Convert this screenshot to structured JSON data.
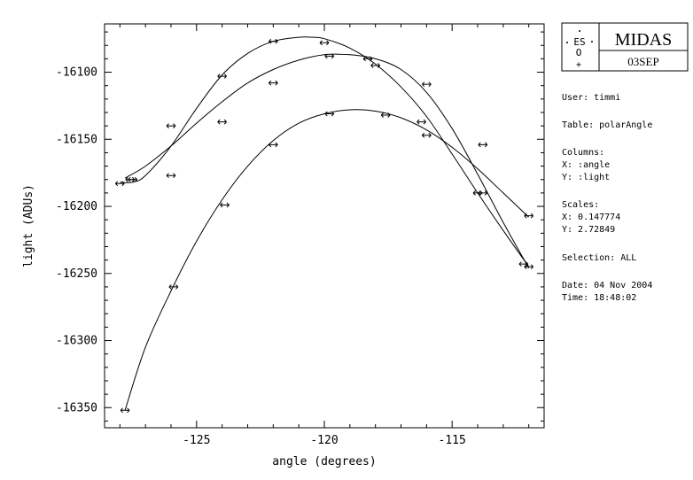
{
  "chart_data": {
    "type": "scatter",
    "xlabel": "angle (degrees)",
    "ylabel": "light (ADUs)",
    "xlim": [
      -128.6,
      -111.4
    ],
    "ylim": [
      -16365,
      -16064
    ],
    "xticks": [
      -125,
      -120,
      -115
    ],
    "yticks": [
      -16100,
      -16150,
      -16200,
      -16250,
      -16300,
      -16350
    ],
    "tick_labels_x": [
      "-125",
      "-120",
      "-115"
    ],
    "tick_labels_y": [
      "-16100",
      "-16150",
      "-16200",
      "-16250",
      "-16300",
      "-16350"
    ],
    "grid": false,
    "marker": "double-arrow",
    "series": [
      {
        "points": [
          {
            "x": -128.0,
            "y": -16183
          },
          {
            "x": -127.5,
            "y": -16180
          },
          {
            "x": -126.0,
            "y": -16140
          },
          {
            "x": -124.0,
            "y": -16103
          },
          {
            "x": -122.0,
            "y": -16077
          },
          {
            "x": -120.0,
            "y": -16078
          },
          {
            "x": -118.0,
            "y": -16095
          },
          {
            "x": -116.0,
            "y": -16147
          },
          {
            "x": -113.8,
            "y": -16190
          },
          {
            "x": -112.0,
            "y": -16245
          }
        ],
        "curve": [
          [
            -128.0,
            -16182
          ],
          [
            -127.5,
            -16182
          ],
          [
            -127.0,
            -16177
          ],
          [
            -126.0,
            -16155
          ],
          [
            -125.0,
            -16127
          ],
          [
            -124.0,
            -16102
          ],
          [
            -123.0,
            -16086
          ],
          [
            -122.0,
            -16077
          ],
          [
            -121.0,
            -16074
          ],
          [
            -120.5,
            -16074
          ],
          [
            -120.0,
            -16075
          ],
          [
            -119.0,
            -16082
          ],
          [
            -118.0,
            -16094
          ],
          [
            -117.0,
            -16111
          ],
          [
            -116.0,
            -16133
          ],
          [
            -115.0,
            -16161
          ],
          [
            -114.0,
            -16190
          ],
          [
            -113.0,
            -16218
          ],
          [
            -112.0,
            -16245
          ]
        ]
      },
      {
        "points": [
          {
            "x": -127.6,
            "y": -16180
          },
          {
            "x": -126.0,
            "y": -16177
          },
          {
            "x": -124.0,
            "y": -16137
          },
          {
            "x": -122.0,
            "y": -16108
          },
          {
            "x": -119.8,
            "y": -16088
          },
          {
            "x": -118.3,
            "y": -16090
          },
          {
            "x": -116.2,
            "y": -16137
          },
          {
            "x": -116.0,
            "y": -16109
          },
          {
            "x": -114.0,
            "y": -16190
          },
          {
            "x": -112.2,
            "y": -16243
          }
        ],
        "curve": [
          [
            -127.8,
            -16179
          ],
          [
            -127.0,
            -16170
          ],
          [
            -126.0,
            -16155
          ],
          [
            -125.0,
            -16138
          ],
          [
            -124.0,
            -16122
          ],
          [
            -123.0,
            -16108
          ],
          [
            -122.0,
            -16098
          ],
          [
            -121.0,
            -16091
          ],
          [
            -120.0,
            -16087
          ],
          [
            -119.0,
            -16087
          ],
          [
            -118.0,
            -16090
          ],
          [
            -117.0,
            -16098
          ],
          [
            -116.0,
            -16115
          ],
          [
            -115.0,
            -16142
          ],
          [
            -114.0,
            -16176
          ],
          [
            -113.0,
            -16212
          ],
          [
            -112.0,
            -16246
          ]
        ]
      },
      {
        "points": [
          {
            "x": -127.8,
            "y": -16352
          },
          {
            "x": -125.9,
            "y": -16260
          },
          {
            "x": -123.9,
            "y": -16199
          },
          {
            "x": -122.0,
            "y": -16154
          },
          {
            "x": -119.8,
            "y": -16131
          },
          {
            "x": -117.6,
            "y": -16132
          },
          {
            "x": -113.8,
            "y": -16154
          },
          {
            "x": -112.0,
            "y": -16207
          }
        ],
        "curve": [
          [
            -127.8,
            -16352
          ],
          [
            -127.0,
            -16305
          ],
          [
            -126.0,
            -16263
          ],
          [
            -125.0,
            -16226
          ],
          [
            -124.0,
            -16195
          ],
          [
            -123.0,
            -16170
          ],
          [
            -122.0,
            -16151
          ],
          [
            -121.0,
            -16138
          ],
          [
            -120.0,
            -16131
          ],
          [
            -119.0,
            -16128
          ],
          [
            -118.0,
            -16129
          ],
          [
            -117.0,
            -16134
          ],
          [
            -116.0,
            -16143
          ],
          [
            -115.0,
            -16156
          ],
          [
            -114.0,
            -16172
          ],
          [
            -113.0,
            -16190
          ],
          [
            -112.0,
            -16208
          ]
        ]
      }
    ]
  },
  "logo": {
    "emblem_text": "ES",
    "emblem_sub": "O",
    "product": "MIDAS",
    "version": "03SEP"
  },
  "info": {
    "user": "User: timmi",
    "table": "Table: polarAngle",
    "columns_label": "Columns:",
    "x_column": "X: :angle",
    "y_column": "Y: :light",
    "scales_label": "Scales:",
    "x_scale": "X: 0.147774",
    "y_scale": "Y: 2.72849",
    "selection": "Selection:  ALL",
    "date": "Date: 04 Nov 2004",
    "time": "Time: 18:48:02"
  }
}
